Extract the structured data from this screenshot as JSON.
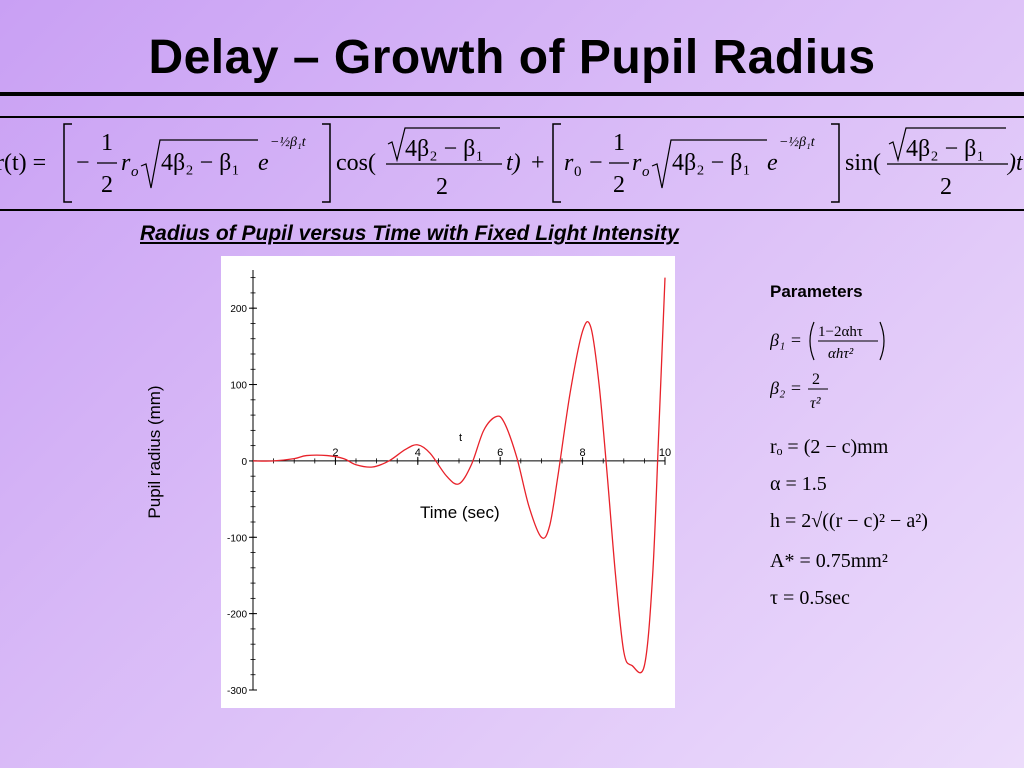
{
  "slide": {
    "title": "Delay – Growth of Pupil Radius",
    "background_colors": [
      "#c9a0f4",
      "#ecdcfb"
    ]
  },
  "formula": {
    "lhs": "r(t) =",
    "term1_coef_num": "1",
    "term1_coef_den": "2",
    "r_o": "r",
    "r_o_sub": "o",
    "sqrt_expr": "4β₂ − β₁",
    "exp_base": "e",
    "exp_power": "−½β₁t",
    "cos": "cos(",
    "sin": "sin(",
    "arg_den": "2",
    "arg_t": "t)",
    "plus": "+",
    "r0": "r",
    "r0_sub": "0",
    "minus": "−",
    "tail": ")t"
  },
  "chart_data": {
    "type": "line",
    "title": "Radius of Pupil versus Time with Fixed Light Intensity",
    "xlabel": "Time (sec)",
    "ylabel": "Pupil radius (mm)",
    "x_axis_letter": "t",
    "xlim": [
      0,
      10
    ],
    "ylim": [
      -300,
      250
    ],
    "x_ticks": [
      2,
      4,
      6,
      8,
      10
    ],
    "y_ticks": [
      200,
      100,
      0,
      -100,
      -200,
      -300
    ],
    "series": [
      {
        "color": "#e8222a",
        "x": [
          0,
          0.5,
          1.0,
          1.3,
          1.8,
          2.2,
          2.5,
          2.9,
          3.3,
          3.7,
          4.0,
          4.3,
          4.7,
          5.0,
          5.3,
          5.6,
          5.9,
          6.1,
          6.4,
          6.7,
          7.0,
          7.2,
          7.4,
          7.7,
          8.0,
          8.2,
          8.4,
          8.6,
          8.8,
          9.0,
          9.2,
          9.5,
          9.7,
          9.85,
          10.0
        ],
        "y": [
          0,
          0,
          3,
          7,
          7,
          3,
          -5,
          -8,
          0,
          15,
          21,
          10,
          -20,
          -30,
          -5,
          40,
          58,
          50,
          5,
          -60,
          -100,
          -85,
          -20,
          90,
          170,
          175,
          100,
          -20,
          -150,
          -250,
          -268,
          -268,
          -150,
          40,
          240
        ]
      }
    ]
  },
  "parameters": {
    "title": "Parameters",
    "beta1_lhs": "β₁ =",
    "beta1_num": "1−2αhτ",
    "beta1_den": "αhτ²",
    "beta2_lhs": "β₂ =",
    "beta2_num": "2",
    "beta2_den": "τ²",
    "ro": "rₒ = (2 − c)mm",
    "alpha": "α = 1.5",
    "h": "h = 2√((r − c)² − a²)",
    "A": "A* = 0.75mm²",
    "tau": "τ = 0.5sec"
  }
}
